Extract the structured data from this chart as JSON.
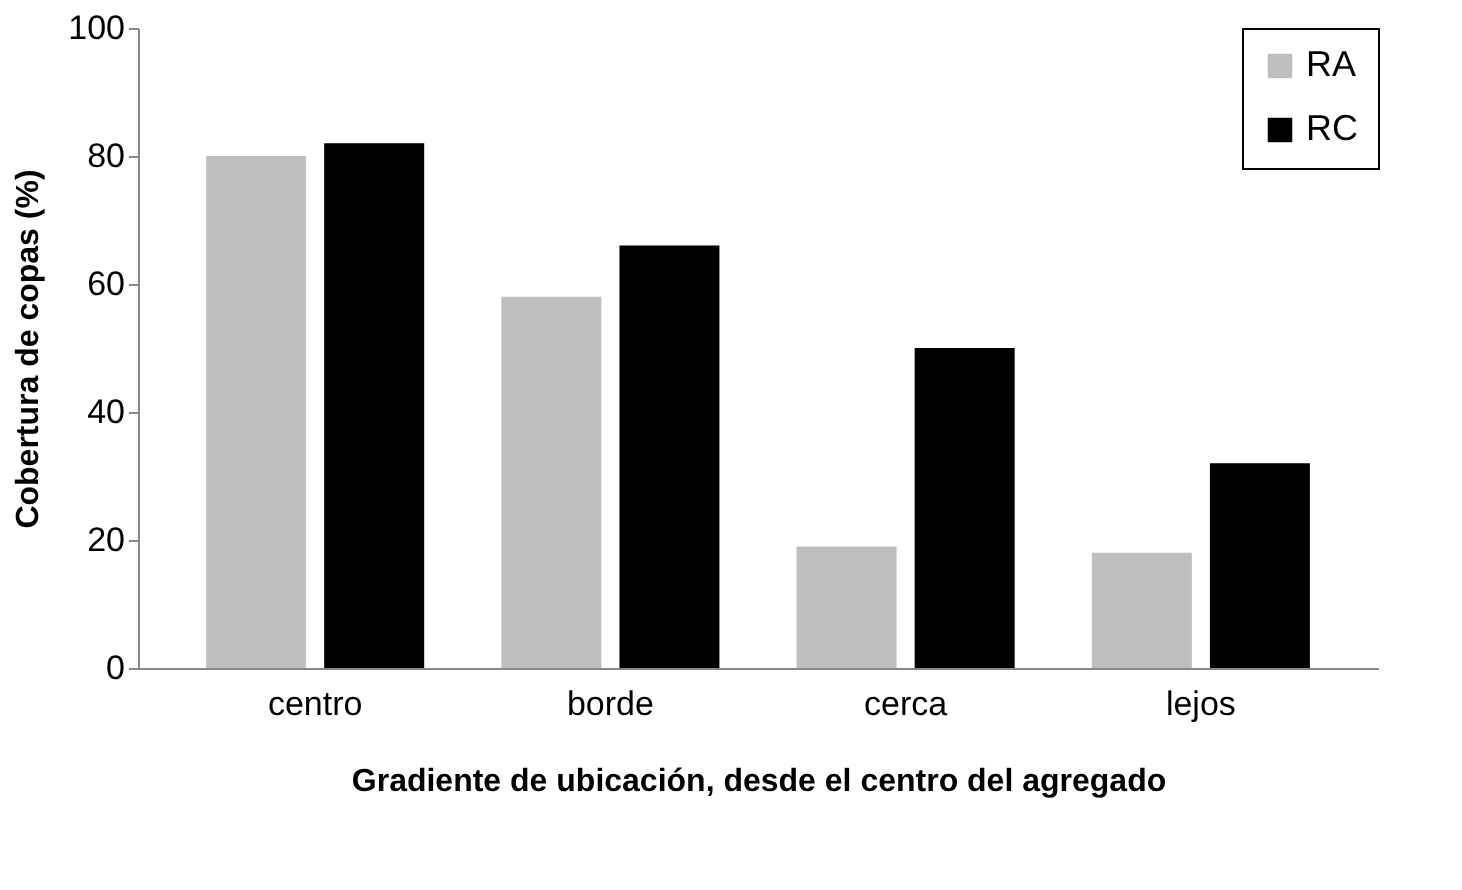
{
  "chart_data": {
    "type": "bar",
    "xlabel": "Gradiente de ubicación, desde el centro del agregado",
    "ylabel": "Cobertura de copas (%)",
    "categories": [
      "centro",
      "borde",
      "cerca",
      "lejos"
    ],
    "series": [
      {
        "name": "RA",
        "color": "#bfbfbf",
        "values": [
          80,
          58,
          19,
          18
        ]
      },
      {
        "name": "RC",
        "color": "#000000",
        "values": [
          82,
          66,
          50,
          32
        ]
      }
    ],
    "ylim": [
      0,
      100
    ],
    "yticks": [
      0,
      20,
      40,
      60,
      80,
      100
    ],
    "grid": false,
    "legend": "top right"
  }
}
